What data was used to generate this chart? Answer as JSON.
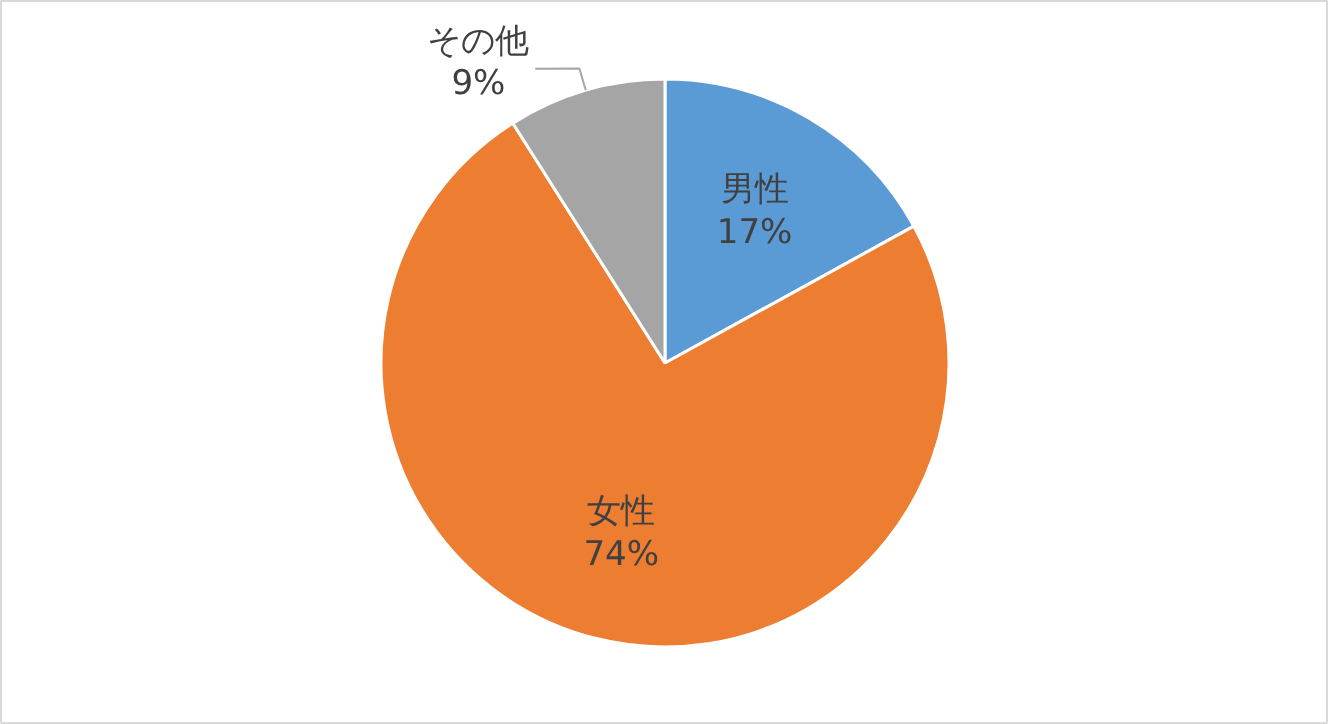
{
  "chart_data": {
    "type": "pie",
    "categories": [
      "男性",
      "女性",
      "その他"
    ],
    "values": [
      17,
      74,
      9
    ],
    "colors": [
      "#5b9bd5",
      "#ed7d31",
      "#a5a5a5"
    ],
    "value_labels": [
      "17%",
      "74%",
      "9%"
    ]
  }
}
